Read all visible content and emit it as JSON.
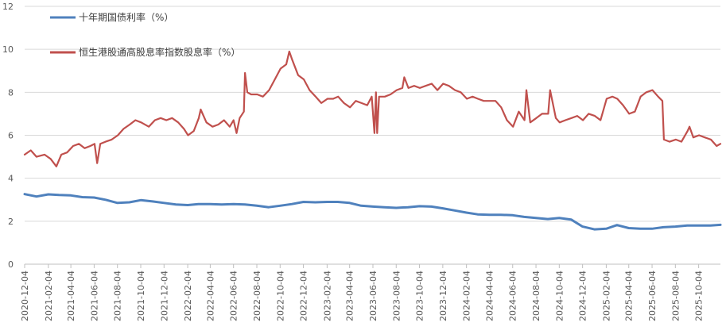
{
  "chart_data": {
    "type": "line",
    "title": "",
    "xlabel": "",
    "ylabel": "",
    "ylim": [
      0,
      12
    ],
    "yticks": [
      0,
      2,
      4,
      6,
      8,
      10,
      12
    ],
    "xlim": [
      "2020-12-04",
      "2025-11-30"
    ],
    "x_tick_labels": [
      "2020-12-04",
      "2021-02-04",
      "2021-04-04",
      "2021-06-04",
      "2021-08-04",
      "2021-10-04",
      "2021-12-04",
      "2022-02-04",
      "2022-04-04",
      "2022-06-04",
      "2022-08-04",
      "2022-10-04",
      "2022-12-04",
      "2023-02-04",
      "2023-04-04",
      "2023-06-04",
      "2023-08-04",
      "2023-10-04",
      "2023-12-04",
      "2024-02-04",
      "2024-04-04",
      "2024-06-04",
      "2024-08-04",
      "2024-10-04",
      "2024-12-04",
      "2025-02-04",
      "2025-04-04",
      "2025-06-04",
      "2025-08-04",
      "2025-10-04"
    ],
    "grid": "horizontal",
    "legend_position": "top-left",
    "series": [
      {
        "name": "十年期国债利率（%）",
        "color": "#4f81bd",
        "x": [
          "2020-12-04",
          "2021-01-04",
          "2021-02-04",
          "2021-03-04",
          "2021-04-04",
          "2021-05-04",
          "2021-06-04",
          "2021-07-04",
          "2021-08-04",
          "2021-09-04",
          "2021-10-04",
          "2021-11-04",
          "2021-12-04",
          "2022-01-04",
          "2022-02-04",
          "2022-03-04",
          "2022-04-04",
          "2022-05-04",
          "2022-06-04",
          "2022-07-04",
          "2022-08-04",
          "2022-09-04",
          "2022-10-04",
          "2022-11-04",
          "2022-12-04",
          "2023-01-04",
          "2023-02-04",
          "2023-03-04",
          "2023-04-04",
          "2023-05-04",
          "2023-06-04",
          "2023-07-04",
          "2023-08-04",
          "2023-09-04",
          "2023-10-04",
          "2023-11-04",
          "2023-12-04",
          "2024-01-04",
          "2024-02-04",
          "2024-03-04",
          "2024-04-04",
          "2024-05-04",
          "2024-06-04",
          "2024-07-04",
          "2024-08-04",
          "2024-09-04",
          "2024-10-04",
          "2024-11-04",
          "2024-12-04",
          "2025-01-04",
          "2025-02-04",
          "2025-03-04",
          "2025-04-04",
          "2025-05-04",
          "2025-06-04",
          "2025-07-04",
          "2025-08-04",
          "2025-09-04",
          "2025-10-04",
          "2025-11-04",
          "2025-11-30"
        ],
        "values": [
          3.26,
          3.15,
          3.25,
          3.22,
          3.2,
          3.12,
          3.1,
          3.0,
          2.85,
          2.88,
          2.98,
          2.92,
          2.85,
          2.78,
          2.75,
          2.8,
          2.8,
          2.78,
          2.8,
          2.78,
          2.72,
          2.65,
          2.72,
          2.8,
          2.9,
          2.88,
          2.9,
          2.9,
          2.85,
          2.72,
          2.68,
          2.65,
          2.62,
          2.65,
          2.7,
          2.68,
          2.6,
          2.5,
          2.4,
          2.32,
          2.3,
          2.3,
          2.28,
          2.2,
          2.15,
          2.1,
          2.15,
          2.08,
          1.75,
          1.62,
          1.65,
          1.82,
          1.68,
          1.65,
          1.65,
          1.72,
          1.75,
          1.8,
          1.8,
          1.8,
          1.83
        ]
      },
      {
        "name": "恒生港股通高股息率指数股息率（%）",
        "color": "#c0504d",
        "x": [
          "2020-12-04",
          "2020-12-20",
          "2021-01-04",
          "2021-01-25",
          "2021-02-10",
          "2021-02-25",
          "2021-03-10",
          "2021-03-25",
          "2021-04-10",
          "2021-04-25",
          "2021-05-10",
          "2021-05-25",
          "2021-06-05",
          "2021-06-12",
          "2021-06-20",
          "2021-07-04",
          "2021-07-20",
          "2021-08-05",
          "2021-08-20",
          "2021-09-05",
          "2021-09-20",
          "2021-10-05",
          "2021-10-25",
          "2021-11-10",
          "2021-11-25",
          "2021-12-10",
          "2021-12-25",
          "2022-01-10",
          "2022-01-25",
          "2022-02-05",
          "2022-02-20",
          "2022-03-05",
          "2022-03-10",
          "2022-03-25",
          "2022-04-10",
          "2022-04-25",
          "2022-05-10",
          "2022-05-25",
          "2022-06-04",
          "2022-06-12",
          "2022-06-20",
          "2022-07-01",
          "2022-07-04",
          "2022-07-10",
          "2022-07-20",
          "2022-08-05",
          "2022-08-20",
          "2022-09-05",
          "2022-09-20",
          "2022-10-05",
          "2022-10-20",
          "2022-10-28",
          "2022-11-05",
          "2022-11-20",
          "2022-12-05",
          "2022-12-20",
          "2023-01-05",
          "2023-01-20",
          "2023-02-05",
          "2023-02-20",
          "2023-03-05",
          "2023-03-20",
          "2023-04-05",
          "2023-04-20",
          "2023-05-05",
          "2023-05-20",
          "2023-06-01",
          "2023-06-08",
          "2023-06-12",
          "2023-06-15",
          "2023-06-20",
          "2023-07-05",
          "2023-07-20",
          "2023-08-05",
          "2023-08-20",
          "2023-08-25",
          "2023-09-05",
          "2023-09-20",
          "2023-10-05",
          "2023-10-20",
          "2023-11-05",
          "2023-11-20",
          "2023-12-05",
          "2023-12-20",
          "2024-01-05",
          "2024-01-20",
          "2024-02-05",
          "2024-02-20",
          "2024-03-05",
          "2024-03-20",
          "2024-04-05",
          "2024-04-20",
          "2024-05-05",
          "2024-05-20",
          "2024-06-05",
          "2024-06-20",
          "2024-07-05",
          "2024-07-10",
          "2024-07-20",
          "2024-08-05",
          "2024-08-20",
          "2024-09-05",
          "2024-09-10",
          "2024-09-25",
          "2024-10-05",
          "2024-10-20",
          "2024-11-05",
          "2024-11-20",
          "2024-12-05",
          "2024-12-20",
          "2025-01-05",
          "2025-01-20",
          "2025-02-05",
          "2025-02-20",
          "2025-03-05",
          "2025-03-20",
          "2025-04-05",
          "2025-04-20",
          "2025-05-05",
          "2025-05-20",
          "2025-06-05",
          "2025-06-20",
          "2025-07-01",
          "2025-07-05",
          "2025-07-20",
          "2025-08-05",
          "2025-08-20",
          "2025-09-05",
          "2025-09-10",
          "2025-09-20",
          "2025-10-05",
          "2025-10-20",
          "2025-11-05",
          "2025-11-20",
          "2025-11-30"
        ],
        "values": [
          5.1,
          5.3,
          5.0,
          5.1,
          4.9,
          4.55,
          5.1,
          5.2,
          5.5,
          5.6,
          5.4,
          5.5,
          5.6,
          4.7,
          5.6,
          5.7,
          5.8,
          6.0,
          6.3,
          6.5,
          6.7,
          6.6,
          6.4,
          6.7,
          6.8,
          6.7,
          6.8,
          6.6,
          6.3,
          6.0,
          6.2,
          6.8,
          7.2,
          6.6,
          6.4,
          6.5,
          6.7,
          6.4,
          6.7,
          6.1,
          6.8,
          7.1,
          8.9,
          8.0,
          7.9,
          7.9,
          7.8,
          8.1,
          8.6,
          9.1,
          9.3,
          9.9,
          9.5,
          8.8,
          8.6,
          8.1,
          7.8,
          7.5,
          7.7,
          7.7,
          7.8,
          7.5,
          7.3,
          7.6,
          7.5,
          7.4,
          7.8,
          6.1,
          8.0,
          6.1,
          7.8,
          7.8,
          7.9,
          8.1,
          8.2,
          8.7,
          8.2,
          8.3,
          8.2,
          8.3,
          8.4,
          8.1,
          8.4,
          8.3,
          8.1,
          8.0,
          7.7,
          7.8,
          7.7,
          7.6,
          7.6,
          7.6,
          7.3,
          6.7,
          6.4,
          7.1,
          6.7,
          8.1,
          6.6,
          6.8,
          7.0,
          7.0,
          8.1,
          6.8,
          6.6,
          6.7,
          6.8,
          6.9,
          6.7,
          7.0,
          6.9,
          6.7,
          7.7,
          7.8,
          7.7,
          7.4,
          7.0,
          7.1,
          7.8,
          8.0,
          8.1,
          7.8,
          7.6,
          5.8,
          5.7,
          5.8,
          5.7,
          6.2,
          6.4,
          5.9,
          6.0,
          5.9,
          5.8,
          5.5,
          5.6
        ]
      }
    ]
  }
}
